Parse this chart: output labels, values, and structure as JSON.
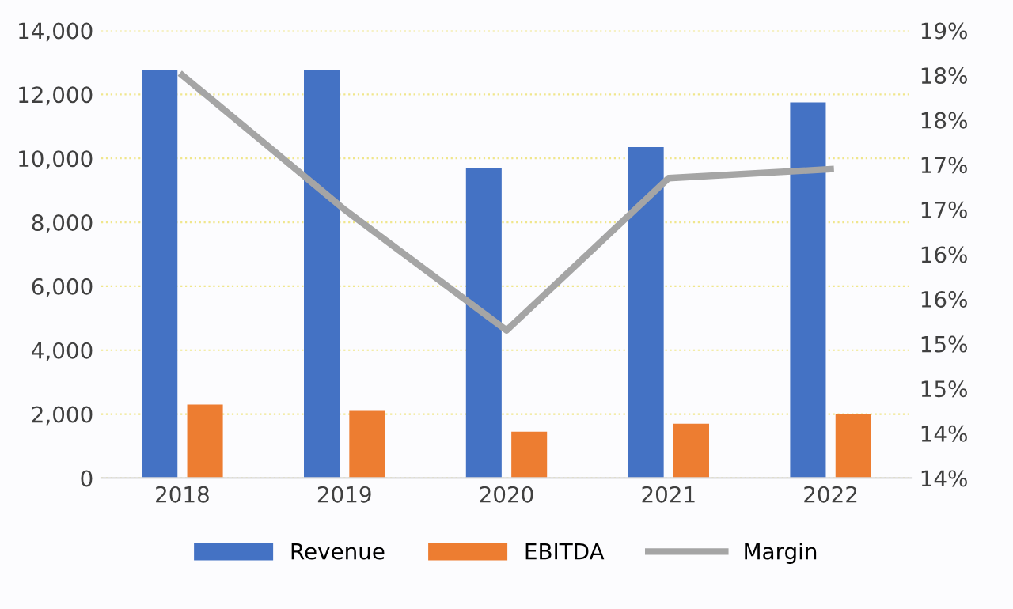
{
  "chart_data": {
    "type": "bar",
    "categories": [
      "2018",
      "2019",
      "2020",
      "2021",
      "2022"
    ],
    "series": [
      {
        "name": "Revenue",
        "color": "#4472c4",
        "values": [
          12750,
          12750,
          9700,
          10350,
          11750
        ]
      },
      {
        "name": "EBITDA",
        "color": "#ed7d31",
        "values": [
          2300,
          2100,
          1450,
          1700,
          2000
        ]
      },
      {
        "name": "Margin",
        "type": "line",
        "axis": "y2",
        "color": "#a5a5a5",
        "values": [
          18.5,
          17.0,
          15.65,
          17.35,
          17.45
        ]
      }
    ],
    "ylim": [
      0,
      14000
    ],
    "yticks": [
      {
        "value": 0,
        "label": "0"
      },
      {
        "value": 2000,
        "label": "2,000"
      },
      {
        "value": 4000,
        "label": "4,000"
      },
      {
        "value": 6000,
        "label": "6,000"
      },
      {
        "value": 8000,
        "label": "8,000"
      },
      {
        "value": 10000,
        "label": "10,000"
      },
      {
        "value": 12000,
        "label": "12,000"
      },
      {
        "value": 14000,
        "label": "14,000"
      }
    ],
    "y2lim": [
      14,
      19
    ],
    "y2ticks": [
      {
        "value": 14,
        "label": "14%"
      },
      {
        "value": 14.5,
        "label": "14%"
      },
      {
        "value": 15,
        "label": "15%"
      },
      {
        "value": 15.5,
        "label": "15%"
      },
      {
        "value": 16,
        "label": "16%"
      },
      {
        "value": 16.5,
        "label": "16%"
      },
      {
        "value": 17,
        "label": "17%"
      },
      {
        "value": 17.5,
        "label": "17%"
      },
      {
        "value": 18,
        "label": "18%"
      },
      {
        "value": 18.5,
        "label": "18%"
      },
      {
        "value": 19,
        "label": "19%"
      }
    ],
    "grid": "y",
    "legend": "bottom",
    "marker": "none",
    "line_style": "solid"
  }
}
